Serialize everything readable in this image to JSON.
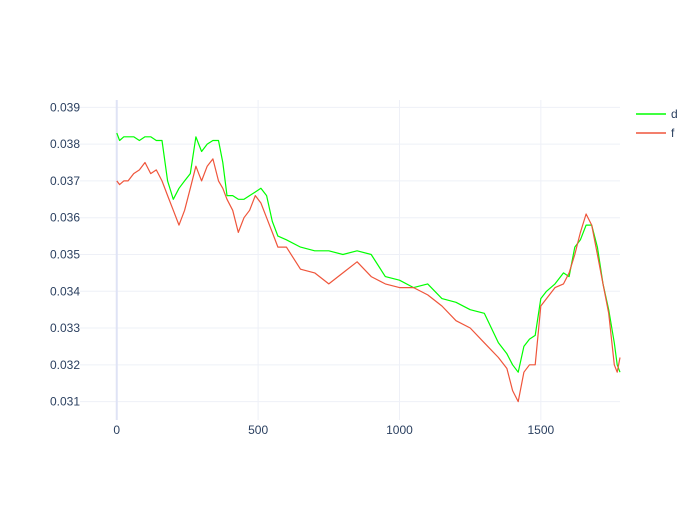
{
  "chart_data": {
    "type": "line",
    "title": "",
    "xlabel": "",
    "ylabel": "",
    "xlim": [
      -130,
      1780
    ],
    "ylim": [
      0.0305,
      0.0392
    ],
    "x_ticks": [
      0,
      500,
      1000,
      1500
    ],
    "y_ticks": [
      0.031,
      0.032,
      0.033,
      0.034,
      0.035,
      0.036,
      0.037,
      0.038,
      0.039
    ],
    "x_tick_labels": [
      "0",
      "500",
      "1000",
      "1500"
    ],
    "y_tick_labels": [
      "0.031",
      "0.032",
      "0.033",
      "0.034",
      "0.035",
      "0.036",
      "0.037",
      "0.038",
      "0.039"
    ],
    "grid": true,
    "legend_position": "top-right",
    "series": [
      {
        "name": "d",
        "color": "#00ff00",
        "x": [
          0,
          10,
          25,
          40,
          60,
          80,
          100,
          120,
          140,
          160,
          180,
          200,
          220,
          240,
          260,
          280,
          290,
          300,
          320,
          340,
          360,
          375,
          390,
          410,
          430,
          450,
          470,
          490,
          510,
          530,
          550,
          570,
          600,
          650,
          700,
          750,
          800,
          850,
          900,
          950,
          1000,
          1050,
          1100,
          1150,
          1200,
          1250,
          1300,
          1350,
          1380,
          1400,
          1420,
          1440,
          1460,
          1480,
          1500,
          1520,
          1550,
          1580,
          1600,
          1620,
          1640,
          1660,
          1680,
          1700,
          1720,
          1740,
          1760,
          1770,
          1780
        ],
        "y": [
          0.0383,
          0.0381,
          0.0382,
          0.0382,
          0.0382,
          0.0381,
          0.0382,
          0.0382,
          0.0381,
          0.0381,
          0.037,
          0.0365,
          0.0368,
          0.037,
          0.0372,
          0.0382,
          0.038,
          0.0378,
          0.038,
          0.0381,
          0.0381,
          0.0375,
          0.0366,
          0.0366,
          0.0365,
          0.0365,
          0.0366,
          0.0367,
          0.0368,
          0.0366,
          0.0359,
          0.0355,
          0.0354,
          0.0352,
          0.0351,
          0.0351,
          0.035,
          0.0351,
          0.035,
          0.0344,
          0.0343,
          0.0341,
          0.0342,
          0.0338,
          0.0337,
          0.0335,
          0.0334,
          0.0326,
          0.0323,
          0.032,
          0.0318,
          0.0325,
          0.0327,
          0.0328,
          0.0338,
          0.034,
          0.0342,
          0.0345,
          0.0344,
          0.0352,
          0.0354,
          0.0358,
          0.0358,
          0.0352,
          0.0342,
          0.0335,
          0.0326,
          0.032,
          0.0318
        ]
      },
      {
        "name": "f",
        "color": "#ef553b",
        "x": [
          0,
          10,
          25,
          40,
          60,
          80,
          100,
          120,
          140,
          160,
          180,
          200,
          220,
          240,
          260,
          280,
          290,
          300,
          320,
          340,
          360,
          375,
          390,
          410,
          430,
          450,
          470,
          490,
          510,
          530,
          550,
          570,
          600,
          650,
          700,
          750,
          800,
          850,
          900,
          950,
          1000,
          1050,
          1100,
          1150,
          1200,
          1250,
          1300,
          1350,
          1380,
          1400,
          1420,
          1440,
          1460,
          1480,
          1500,
          1520,
          1550,
          1580,
          1600,
          1620,
          1640,
          1660,
          1680,
          1700,
          1720,
          1740,
          1760,
          1770,
          1780
        ],
        "y": [
          0.037,
          0.0369,
          0.037,
          0.037,
          0.0372,
          0.0373,
          0.0375,
          0.0372,
          0.0373,
          0.037,
          0.0366,
          0.0362,
          0.0358,
          0.0362,
          0.0368,
          0.0374,
          0.0372,
          0.037,
          0.0374,
          0.0376,
          0.037,
          0.0368,
          0.0365,
          0.0362,
          0.0356,
          0.036,
          0.0362,
          0.0366,
          0.0364,
          0.036,
          0.0356,
          0.0352,
          0.0352,
          0.0346,
          0.0345,
          0.0342,
          0.0345,
          0.0348,
          0.0344,
          0.0342,
          0.0341,
          0.0341,
          0.0339,
          0.0336,
          0.0332,
          0.033,
          0.0326,
          0.0322,
          0.0319,
          0.0313,
          0.031,
          0.0318,
          0.032,
          0.032,
          0.0336,
          0.0338,
          0.0341,
          0.0342,
          0.0345,
          0.035,
          0.0356,
          0.0361,
          0.0358,
          0.035,
          0.0342,
          0.0334,
          0.032,
          0.0318,
          0.0322
        ]
      }
    ]
  }
}
